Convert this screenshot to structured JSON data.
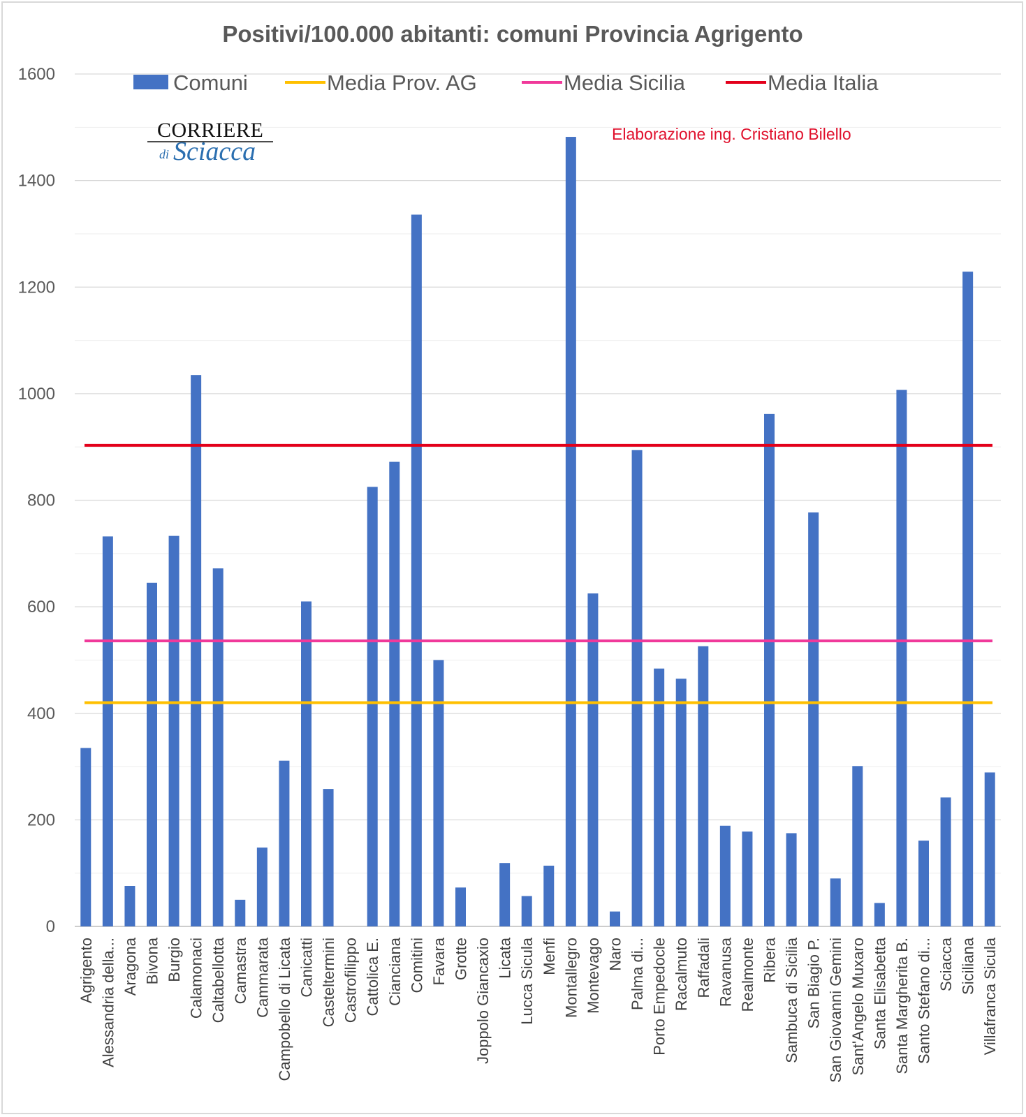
{
  "chart_data": {
    "type": "bar",
    "title": "Positivi/100.000 abitanti: comuni Provincia Agrigento",
    "xlabel": "",
    "ylabel": "",
    "ylim": [
      0,
      1600
    ],
    "yticks": [
      0,
      200,
      400,
      600,
      800,
      1000,
      1200,
      1400,
      1600
    ],
    "grid": true,
    "legend_position": "top",
    "categories": [
      "Agrigento",
      "Alessandria della...",
      "Aragona",
      "Bivona",
      "Burgio",
      "Calamonaci",
      "Caltabellotta",
      "Camastra",
      "Cammarata",
      "Campobello di Licata",
      "Canicatti",
      "Casteltermini",
      "Castrofilippo",
      "Cattolica E.",
      "Cianciana",
      "Comitini",
      "Favara",
      "Grotte",
      "Joppolo Giancaxio",
      "Licata",
      "Lucca Sicula",
      "Menfi",
      "Montallegro",
      "Montevago",
      "Naro",
      "Palma di...",
      "Porto Empedocle",
      "Racalmuto",
      "Raffadali",
      "Ravanusa",
      "Realmonte",
      "Ribera",
      "Sambuca di Sicilia",
      "San Biagio P.",
      "San Giovanni Gemini",
      "Sant'Angelo Muxaro",
      "Santa Elisabetta",
      "Santa Margherita B.",
      "Santo Stefano di...",
      "Sciacca",
      "Siciliana",
      "Villafranca Sicula"
    ],
    "series": [
      {
        "name": "Comuni",
        "color": "#4472c4",
        "values": [
          335,
          732,
          76,
          645,
          733,
          1035,
          672,
          50,
          148,
          311,
          610,
          258,
          0,
          825,
          872,
          1336,
          500,
          73,
          0,
          119,
          57,
          114,
          1482,
          625,
          28,
          894,
          484,
          465,
          526,
          189,
          178,
          962,
          175,
          777,
          90,
          301,
          44,
          1007,
          161,
          242,
          1229,
          289
        ]
      }
    ],
    "reference_lines": [
      {
        "name": "Media Prov. AG",
        "value": 420,
        "color": "#ffc000"
      },
      {
        "name": "Media Sicilia",
        "value": 536,
        "color": "#f0399a"
      },
      {
        "name": "Media Italia",
        "value": 903,
        "color": "#e3001b"
      }
    ],
    "annotations": {
      "credit": "Elaborazione ing. Cristiano Bilello",
      "logo": {
        "line1": "CORRIERE",
        "line2_small": "di",
        "line2_script": "Sciacca"
      }
    }
  }
}
